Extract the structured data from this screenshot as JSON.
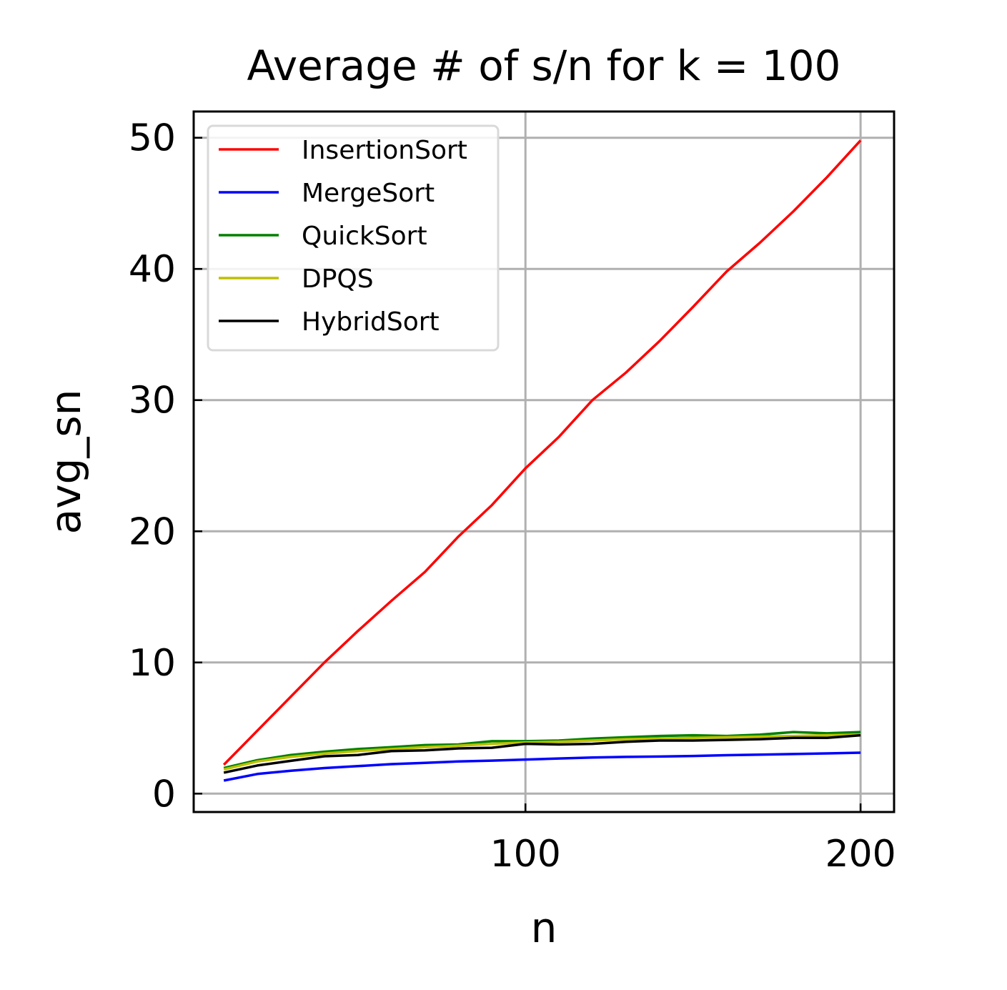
{
  "chart_data": {
    "type": "line",
    "title": "Average # of s/n for k = 100",
    "xlabel": "n",
    "ylabel": "avg_sn",
    "xlim": [
      1,
      210
    ],
    "ylim": [
      -1.4,
      52
    ],
    "xticks": [
      100,
      200
    ],
    "yticks": [
      0,
      10,
      20,
      30,
      40,
      50
    ],
    "grid": true,
    "legend_position": "upper-left",
    "x": [
      10,
      20,
      30,
      40,
      50,
      60,
      70,
      80,
      90,
      100,
      110,
      120,
      130,
      140,
      150,
      160,
      170,
      180,
      190,
      200
    ],
    "series": [
      {
        "name": "InsertionSort",
        "color": "#ff0000",
        "values": [
          2.2,
          4.8,
          7.4,
          10.0,
          12.4,
          14.7,
          16.9,
          19.6,
          22.0,
          24.8,
          27.2,
          30.0,
          32.1,
          34.5,
          37.1,
          39.8,
          42.0,
          44.4,
          47.0,
          49.8
        ]
      },
      {
        "name": "MergeSort",
        "color": "#0000ff",
        "values": [
          1.0,
          1.5,
          1.75,
          1.95,
          2.1,
          2.25,
          2.35,
          2.45,
          2.52,
          2.6,
          2.68,
          2.75,
          2.8,
          2.83,
          2.87,
          2.93,
          2.97,
          3.02,
          3.07,
          3.12
        ]
      },
      {
        "name": "QuickSort",
        "color": "#008000",
        "values": [
          1.95,
          2.55,
          2.95,
          3.2,
          3.4,
          3.55,
          3.7,
          3.75,
          4.0,
          4.0,
          4.05,
          4.2,
          4.3,
          4.4,
          4.45,
          4.4,
          4.5,
          4.7,
          4.6,
          4.7
        ]
      },
      {
        "name": "DPQS",
        "color": "#bfbf00",
        "values": [
          1.85,
          2.45,
          2.8,
          3.05,
          3.25,
          3.4,
          3.55,
          3.65,
          3.8,
          3.9,
          3.95,
          4.05,
          4.15,
          4.2,
          4.25,
          4.3,
          4.35,
          4.4,
          4.45,
          4.5
        ]
      },
      {
        "name": "HybridSort",
        "color": "#000000",
        "values": [
          1.6,
          2.15,
          2.5,
          2.85,
          2.95,
          3.25,
          3.3,
          3.45,
          3.5,
          3.8,
          3.75,
          3.8,
          3.95,
          4.05,
          4.05,
          4.1,
          4.15,
          4.25,
          4.25,
          4.45
        ]
      }
    ]
  }
}
